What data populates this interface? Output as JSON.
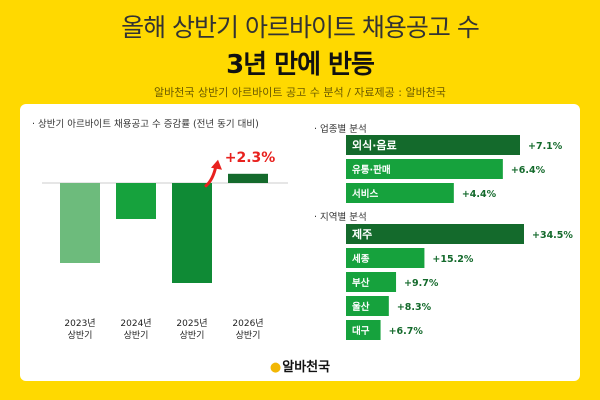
{
  "header": {
    "title_line1": "올해 상반기 아르바이트 채용공고 수",
    "title_line2": "3년 만에 반등",
    "subtitle": "알바천국 상반기 아르바이트 공고 수 분석 / 자료제공 : 알바천국"
  },
  "colors": {
    "background": "#FFD900",
    "bar_light": "#6dbb7c",
    "bar_mid": "#16a23d",
    "bar_deep": "#0f8a35",
    "bar_dark": "#146a2c",
    "increase": "#e8211e"
  },
  "brand": {
    "name": "알바천국"
  },
  "chart_data": [
    {
      "type": "bar",
      "title": "· 상반기 아르바이트 채용공고 수 증감률 (전년 동기 대비)",
      "categories": [
        "2023년|상반기",
        "2024년|상반기",
        "2025년|상반기",
        "2026년|상반기"
      ],
      "values": [
        -20.0,
        -9.0,
        -25.0,
        2.3
      ],
      "value_labels": [
        "",
        "",
        "",
        "+2.3%"
      ],
      "colors": [
        "#6dbb7c",
        "#16a23d",
        "#0f8a35",
        "#146a2c"
      ],
      "ylim": [
        -27,
        10
      ],
      "annotation": "arrow-up"
    },
    {
      "type": "bar",
      "orientation": "horizontal",
      "title": "· 업종별 분석",
      "categories": [
        "외식·음료",
        "유통·판매",
        "서비스"
      ],
      "values": [
        7.1,
        6.4,
        4.4
      ],
      "value_labels": [
        "+7.1%",
        "+6.4%",
        "+4.4%"
      ],
      "colors": [
        "#146a2c",
        "#16a23d",
        "#16a23d"
      ],
      "xlim": [
        0,
        7.1
      ]
    },
    {
      "type": "bar",
      "orientation": "horizontal",
      "title": "· 지역별 분석",
      "categories": [
        "제주",
        "세종",
        "부산",
        "울산",
        "대구"
      ],
      "values": [
        34.5,
        15.2,
        9.7,
        8.3,
        6.7
      ],
      "value_labels": [
        "+34.5%",
        "+15.2%",
        "+9.7%",
        "+8.3%",
        "+6.7%"
      ],
      "colors": [
        "#146a2c",
        "#16a23d",
        "#16a23d",
        "#16a23d",
        "#16a23d"
      ],
      "xlim": [
        0,
        34.5
      ]
    }
  ]
}
